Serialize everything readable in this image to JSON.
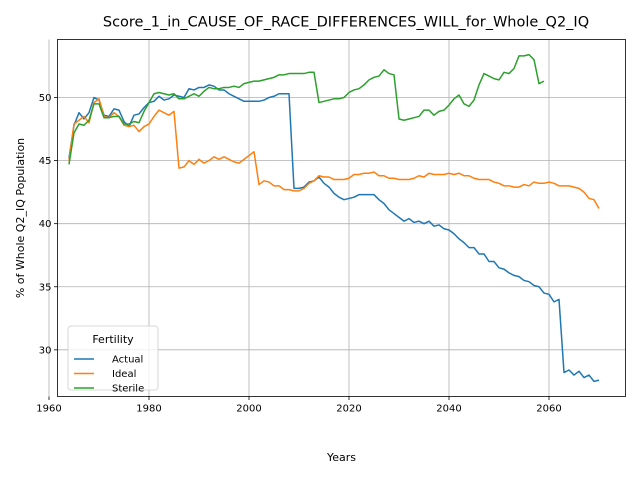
{
  "chart_data": {
    "type": "line",
    "title": "Score_1_in_CAUSE_OF_RACE_DIFFERENCES_WILL_for_Whole_Q2_IQ",
    "xlabel": "Years",
    "ylabel": "% of Whole Q2_IQ Population",
    "xlim": [
      1961.7,
      2075.3
    ],
    "ylim": [
      26.3,
      54.6
    ],
    "xticks": [
      1960,
      1980,
      2000,
      2020,
      2040,
      2060
    ],
    "yticks": [
      30,
      35,
      40,
      45,
      50
    ],
    "grid": true,
    "legend": {
      "title": "Fertility",
      "placement": "lower-left"
    },
    "series": [
      {
        "name": "Actual",
        "color": "#1f77b4",
        "points": [
          [
            1964,
            45.2
          ],
          [
            1965,
            47.8
          ],
          [
            1966,
            48.8
          ],
          [
            1967,
            48.3
          ],
          [
            1968,
            48.8
          ],
          [
            1969,
            50.0
          ],
          [
            1970,
            49.8
          ],
          [
            1971,
            48.6
          ],
          [
            1972,
            48.5
          ],
          [
            1973,
            49.1
          ],
          [
            1974,
            49.0
          ],
          [
            1975,
            48.1
          ],
          [
            1976,
            47.7
          ],
          [
            1977,
            48.6
          ],
          [
            1978,
            48.7
          ],
          [
            1979,
            49.2
          ],
          [
            1980,
            49.6
          ],
          [
            1981,
            49.7
          ],
          [
            1982,
            50.1
          ],
          [
            1983,
            49.8
          ],
          [
            1984,
            49.9
          ],
          [
            1985,
            50.2
          ],
          [
            1986,
            50.1
          ],
          [
            1987,
            50.0
          ],
          [
            1988,
            50.7
          ],
          [
            1989,
            50.6
          ],
          [
            1990,
            50.8
          ],
          [
            1991,
            50.8
          ],
          [
            1992,
            51.0
          ],
          [
            1993,
            50.9
          ],
          [
            1994,
            50.6
          ],
          [
            1995,
            50.6
          ],
          [
            1996,
            50.3
          ],
          [
            1997,
            50.1
          ],
          [
            1998,
            49.9
          ],
          [
            1999,
            49.7
          ],
          [
            2000,
            49.7
          ],
          [
            2001,
            49.7
          ],
          [
            2002,
            49.7
          ],
          [
            2003,
            49.8
          ],
          [
            2004,
            50.0
          ],
          [
            2005,
            50.1
          ],
          [
            2006,
            50.3
          ],
          [
            2007,
            50.3
          ],
          [
            2008,
            50.3
          ],
          [
            2009,
            42.8
          ],
          [
            2010,
            42.8
          ],
          [
            2011,
            42.9
          ],
          [
            2012,
            43.3
          ],
          [
            2013,
            43.4
          ],
          [
            2014,
            43.7
          ],
          [
            2015,
            43.2
          ],
          [
            2016,
            42.9
          ],
          [
            2017,
            42.4
          ],
          [
            2018,
            42.1
          ],
          [
            2019,
            41.9
          ],
          [
            2020,
            42.0
          ],
          [
            2021,
            42.1
          ],
          [
            2022,
            42.3
          ],
          [
            2023,
            42.3
          ],
          [
            2024,
            42.3
          ],
          [
            2025,
            42.3
          ],
          [
            2026,
            41.9
          ],
          [
            2027,
            41.6
          ],
          [
            2028,
            41.1
          ],
          [
            2029,
            40.8
          ],
          [
            2030,
            40.5
          ],
          [
            2031,
            40.2
          ],
          [
            2032,
            40.4
          ],
          [
            2033,
            40.1
          ],
          [
            2034,
            40.2
          ],
          [
            2035,
            40.0
          ],
          [
            2036,
            40.2
          ],
          [
            2037,
            39.8
          ],
          [
            2038,
            39.9
          ],
          [
            2039,
            39.6
          ],
          [
            2040,
            39.5
          ],
          [
            2041,
            39.2
          ],
          [
            2042,
            38.8
          ],
          [
            2043,
            38.5
          ],
          [
            2044,
            38.1
          ],
          [
            2045,
            38.1
          ],
          [
            2046,
            37.6
          ],
          [
            2047,
            37.6
          ],
          [
            2048,
            37.0
          ],
          [
            2049,
            37.0
          ],
          [
            2050,
            36.5
          ],
          [
            2051,
            36.4
          ],
          [
            2052,
            36.1
          ],
          [
            2053,
            35.9
          ],
          [
            2054,
            35.8
          ],
          [
            2055,
            35.5
          ],
          [
            2056,
            35.4
          ],
          [
            2057,
            35.1
          ],
          [
            2058,
            35.0
          ],
          [
            2059,
            34.5
          ],
          [
            2060,
            34.4
          ],
          [
            2061,
            33.8
          ],
          [
            2062,
            34.0
          ],
          [
            2063,
            28.2
          ],
          [
            2064,
            28.4
          ],
          [
            2065,
            28.0
          ],
          [
            2066,
            28.3
          ],
          [
            2067,
            27.8
          ],
          [
            2068,
            28.0
          ],
          [
            2069,
            27.5
          ],
          [
            2070,
            27.6
          ]
        ]
      },
      {
        "name": "Ideal",
        "color": "#ff7f0e",
        "points": [
          [
            1964,
            45.0
          ],
          [
            1965,
            47.9
          ],
          [
            1966,
            48.2
          ],
          [
            1967,
            48.5
          ],
          [
            1968,
            48.0
          ],
          [
            1969,
            49.6
          ],
          [
            1970,
            49.9
          ],
          [
            1971,
            48.5
          ],
          [
            1972,
            48.4
          ],
          [
            1973,
            48.8
          ],
          [
            1974,
            48.5
          ],
          [
            1975,
            47.8
          ],
          [
            1976,
            47.7
          ],
          [
            1977,
            47.8
          ],
          [
            1978,
            47.3
          ],
          [
            1979,
            47.7
          ],
          [
            1980,
            47.9
          ],
          [
            1981,
            48.5
          ],
          [
            1982,
            49.0
          ],
          [
            1983,
            48.8
          ],
          [
            1984,
            48.6
          ],
          [
            1985,
            48.9
          ],
          [
            1986,
            44.4
          ],
          [
            1987,
            44.5
          ],
          [
            1988,
            45.0
          ],
          [
            1989,
            44.7
          ],
          [
            1990,
            45.1
          ],
          [
            1991,
            44.8
          ],
          [
            1992,
            45.0
          ],
          [
            1993,
            45.3
          ],
          [
            1994,
            45.1
          ],
          [
            1995,
            45.3
          ],
          [
            1996,
            45.1
          ],
          [
            1997,
            44.9
          ],
          [
            1998,
            44.8
          ],
          [
            1999,
            45.1
          ],
          [
            2000,
            45.4
          ],
          [
            2001,
            45.7
          ],
          [
            2002,
            43.1
          ],
          [
            2003,
            43.4
          ],
          [
            2004,
            43.3
          ],
          [
            2005,
            43.0
          ],
          [
            2006,
            43.0
          ],
          [
            2007,
            42.7
          ],
          [
            2008,
            42.7
          ],
          [
            2009,
            42.6
          ],
          [
            2010,
            42.6
          ],
          [
            2011,
            42.8
          ],
          [
            2012,
            43.2
          ],
          [
            2013,
            43.4
          ],
          [
            2014,
            43.8
          ],
          [
            2015,
            43.7
          ],
          [
            2016,
            43.7
          ],
          [
            2017,
            43.5
          ],
          [
            2018,
            43.5
          ],
          [
            2019,
            43.5
          ],
          [
            2020,
            43.6
          ],
          [
            2021,
            43.9
          ],
          [
            2022,
            43.9
          ],
          [
            2023,
            44.0
          ],
          [
            2024,
            44.0
          ],
          [
            2025,
            44.1
          ],
          [
            2026,
            43.8
          ],
          [
            2027,
            43.8
          ],
          [
            2028,
            43.6
          ],
          [
            2029,
            43.6
          ],
          [
            2030,
            43.5
          ],
          [
            2031,
            43.5
          ],
          [
            2032,
            43.5
          ],
          [
            2033,
            43.6
          ],
          [
            2034,
            43.8
          ],
          [
            2035,
            43.7
          ],
          [
            2036,
            44.0
          ],
          [
            2037,
            43.9
          ],
          [
            2038,
            43.9
          ],
          [
            2039,
            43.9
          ],
          [
            2040,
            44.0
          ],
          [
            2041,
            43.9
          ],
          [
            2042,
            44.0
          ],
          [
            2043,
            43.8
          ],
          [
            2044,
            43.8
          ],
          [
            2045,
            43.6
          ],
          [
            2046,
            43.5
          ],
          [
            2047,
            43.5
          ],
          [
            2048,
            43.5
          ],
          [
            2049,
            43.3
          ],
          [
            2050,
            43.2
          ],
          [
            2051,
            43.0
          ],
          [
            2052,
            43.0
          ],
          [
            2053,
            42.9
          ],
          [
            2054,
            42.9
          ],
          [
            2055,
            43.1
          ],
          [
            2056,
            43.0
          ],
          [
            2057,
            43.3
          ],
          [
            2058,
            43.2
          ],
          [
            2059,
            43.2
          ],
          [
            2060,
            43.3
          ],
          [
            2061,
            43.2
          ],
          [
            2062,
            43.0
          ],
          [
            2063,
            43.0
          ],
          [
            2064,
            43.0
          ],
          [
            2065,
            42.9
          ],
          [
            2066,
            42.8
          ],
          [
            2067,
            42.5
          ],
          [
            2068,
            42.0
          ],
          [
            2069,
            41.9
          ],
          [
            2070,
            41.2
          ]
        ]
      },
      {
        "name": "Sterile",
        "color": "#2ca02c",
        "points": [
          [
            1964,
            44.7
          ],
          [
            1965,
            47.2
          ],
          [
            1966,
            47.9
          ],
          [
            1967,
            47.8
          ],
          [
            1968,
            48.2
          ],
          [
            1969,
            49.5
          ],
          [
            1970,
            49.5
          ],
          [
            1971,
            48.4
          ],
          [
            1972,
            48.4
          ],
          [
            1973,
            48.5
          ],
          [
            1974,
            48.5
          ],
          [
            1975,
            47.9
          ],
          [
            1976,
            47.9
          ],
          [
            1977,
            48.1
          ],
          [
            1978,
            48.0
          ],
          [
            1979,
            48.9
          ],
          [
            1980,
            49.6
          ],
          [
            1981,
            50.3
          ],
          [
            1982,
            50.4
          ],
          [
            1983,
            50.3
          ],
          [
            1984,
            50.2
          ],
          [
            1985,
            50.3
          ],
          [
            1986,
            49.9
          ],
          [
            1987,
            49.9
          ],
          [
            1988,
            50.1
          ],
          [
            1989,
            50.3
          ],
          [
            1990,
            50.1
          ],
          [
            1991,
            50.5
          ],
          [
            1992,
            50.8
          ],
          [
            1993,
            50.7
          ],
          [
            1994,
            50.7
          ],
          [
            1995,
            50.8
          ],
          [
            1996,
            50.8
          ],
          [
            1997,
            50.9
          ],
          [
            1998,
            50.8
          ],
          [
            1999,
            51.1
          ],
          [
            2000,
            51.2
          ],
          [
            2001,
            51.3
          ],
          [
            2002,
            51.3
          ],
          [
            2003,
            51.4
          ],
          [
            2004,
            51.5
          ],
          [
            2005,
            51.6
          ],
          [
            2006,
            51.8
          ],
          [
            2007,
            51.8
          ],
          [
            2008,
            51.9
          ],
          [
            2009,
            51.9
          ],
          [
            2010,
            51.9
          ],
          [
            2011,
            51.9
          ],
          [
            2012,
            52.0
          ],
          [
            2013,
            52.0
          ],
          [
            2014,
            49.6
          ],
          [
            2015,
            49.7
          ],
          [
            2016,
            49.8
          ],
          [
            2017,
            49.9
          ],
          [
            2018,
            49.9
          ],
          [
            2019,
            50.0
          ],
          [
            2020,
            50.4
          ],
          [
            2021,
            50.6
          ],
          [
            2022,
            50.7
          ],
          [
            2023,
            51.0
          ],
          [
            2024,
            51.4
          ],
          [
            2025,
            51.6
          ],
          [
            2026,
            51.7
          ],
          [
            2027,
            52.2
          ],
          [
            2028,
            51.9
          ],
          [
            2029,
            51.8
          ],
          [
            2030,
            48.3
          ],
          [
            2031,
            48.2
          ],
          [
            2032,
            48.3
          ],
          [
            2033,
            48.4
          ],
          [
            2034,
            48.5
          ],
          [
            2035,
            49.0
          ],
          [
            2036,
            49.0
          ],
          [
            2037,
            48.6
          ],
          [
            2038,
            48.9
          ],
          [
            2039,
            49.0
          ],
          [
            2040,
            49.4
          ],
          [
            2041,
            49.9
          ],
          [
            2042,
            50.2
          ],
          [
            2043,
            49.5
          ],
          [
            2044,
            49.3
          ],
          [
            2045,
            49.8
          ],
          [
            2046,
            51.0
          ],
          [
            2047,
            51.9
          ],
          [
            2048,
            51.7
          ],
          [
            2049,
            51.5
          ],
          [
            2050,
            51.4
          ],
          [
            2051,
            52.0
          ],
          [
            2052,
            51.9
          ],
          [
            2053,
            52.3
          ],
          [
            2054,
            53.3
          ],
          [
            2055,
            53.3
          ],
          [
            2056,
            53.4
          ],
          [
            2057,
            53.0
          ],
          [
            2058,
            51.1
          ],
          [
            2059,
            51.3
          ]
        ]
      }
    ]
  }
}
